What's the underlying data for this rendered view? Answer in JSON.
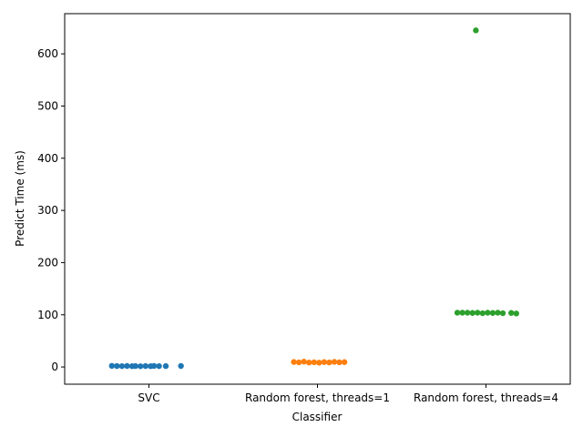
{
  "chart_data": {
    "type": "scatter",
    "subtype": "strip",
    "xlabel": "Classifier",
    "ylabel": "Predict Time (ms)",
    "ylim": [
      -33,
      677
    ],
    "yticks": [
      0,
      100,
      200,
      300,
      400,
      500,
      600
    ],
    "grid": false,
    "categories": [
      "SVC",
      "Random forest, threads=1",
      "Random forest, threads=4"
    ],
    "series": [
      {
        "color": "#1f77b4",
        "points": [
          {
            "jitter": -0.22,
            "y": 2.1
          },
          {
            "jitter": -0.19,
            "y": 1.8
          },
          {
            "jitter": -0.16,
            "y": 1.6
          },
          {
            "jitter": -0.13,
            "y": 1.9
          },
          {
            "jitter": -0.1,
            "y": 1.5
          },
          {
            "jitter": -0.08,
            "y": 1.7
          },
          {
            "jitter": -0.05,
            "y": 1.4
          },
          {
            "jitter": -0.02,
            "y": 1.8
          },
          {
            "jitter": 0.01,
            "y": 1.5
          },
          {
            "jitter": 0.03,
            "y": 2.0
          },
          {
            "jitter": 0.06,
            "y": 1.6
          },
          {
            "jitter": 0.1,
            "y": 1.7
          },
          {
            "jitter": 0.19,
            "y": 1.9
          }
        ]
      },
      {
        "color": "#ff7f0e",
        "points": [
          {
            "jitter": -0.14,
            "y": 9.5
          },
          {
            "jitter": -0.11,
            "y": 8.8
          },
          {
            "jitter": -0.08,
            "y": 10.2
          },
          {
            "jitter": -0.05,
            "y": 8.5
          },
          {
            "jitter": -0.02,
            "y": 9.0
          },
          {
            "jitter": 0.01,
            "y": 8.2
          },
          {
            "jitter": 0.04,
            "y": 9.4
          },
          {
            "jitter": 0.07,
            "y": 8.7
          },
          {
            "jitter": 0.1,
            "y": 9.8
          },
          {
            "jitter": 0.13,
            "y": 8.9
          },
          {
            "jitter": 0.16,
            "y": 9.3
          }
        ]
      },
      {
        "color": "#2ca02c",
        "points": [
          {
            "jitter": -0.06,
            "y": 645
          },
          {
            "jitter": -0.17,
            "y": 104
          },
          {
            "jitter": -0.14,
            "y": 104
          },
          {
            "jitter": -0.11,
            "y": 104
          },
          {
            "jitter": -0.08,
            "y": 103.5
          },
          {
            "jitter": -0.05,
            "y": 104
          },
          {
            "jitter": -0.02,
            "y": 103
          },
          {
            "jitter": 0.01,
            "y": 104
          },
          {
            "jitter": 0.04,
            "y": 103.5
          },
          {
            "jitter": 0.07,
            "y": 104
          },
          {
            "jitter": 0.1,
            "y": 103
          },
          {
            "jitter": 0.15,
            "y": 103.5
          },
          {
            "jitter": 0.18,
            "y": 102.5
          }
        ]
      }
    ]
  }
}
